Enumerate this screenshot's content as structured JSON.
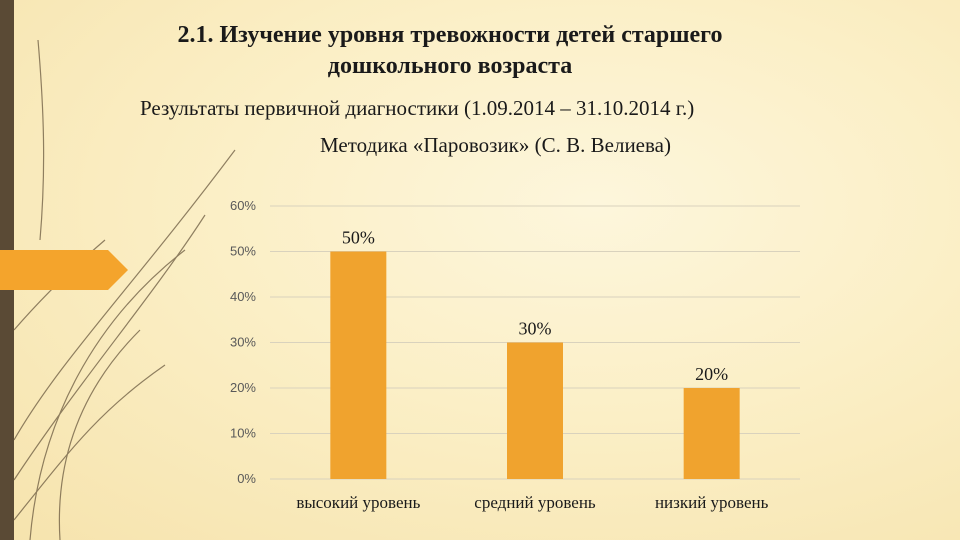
{
  "slide": {
    "title_line1": "2.1. Изучение уровня тревожности детей старшего",
    "title_line2": "дошкольного возраста",
    "subtitle": "Результаты первичной диагностики (1.09.2014 – 31.10.2014 г.)",
    "method": "Методика «Паровозик» (С. В. Велиева)"
  },
  "colors": {
    "bar": "#f0a32e",
    "accent": "#f4a42c",
    "strip": "#5a4a35",
    "grid": "#d9d2bd"
  },
  "chart_data": {
    "type": "bar",
    "categories": [
      "высокий уровень",
      "средний уровень",
      "низкий уровень"
    ],
    "values": [
      50,
      30,
      20
    ],
    "data_labels": [
      "50%",
      "30%",
      "20%"
    ],
    "yticks": [
      "0%",
      "10%",
      "20%",
      "30%",
      "40%",
      "50%",
      "60%"
    ],
    "ylim": [
      0,
      60
    ],
    "grid": true,
    "legend": "none"
  }
}
